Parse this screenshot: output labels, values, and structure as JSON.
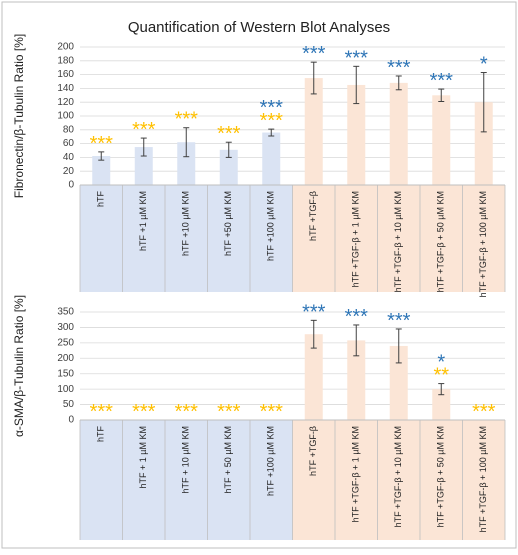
{
  "chart_data": [
    {
      "type": "bar",
      "title": "Quantification of Western Blot Analyses",
      "ylabel": "Fibronectin/β-Tubulin Ratio [%]",
      "categories": [
        "hTF",
        "hTF +1 µM KM",
        "hTF +10 µM KM",
        "hTF +50 µM KM",
        "hTF +100 µM KM",
        "hTF +TGF-β",
        "hTF +TGF-β + 1 µM KM",
        "hTF +TGF-β + 10 µM KM",
        "hTF +TGF-β + 50 µM KM",
        "hTF +TGF-β + 100 µM KM"
      ],
      "values": [
        42,
        55,
        62,
        51,
        76,
        155,
        145,
        148,
        130,
        120
      ],
      "errors": [
        6,
        13,
        21,
        11,
        5,
        23,
        27,
        10,
        9,
        43
      ],
      "colors": [
        "#dae3f3",
        "#dae3f3",
        "#dae3f3",
        "#dae3f3",
        "#dae3f3",
        "#fbe5d6",
        "#fbe5d6",
        "#fbe5d6",
        "#fbe5d6",
        "#fbe5d6"
      ],
      "ylim": [
        0,
        200
      ],
      "yticks": [
        0,
        20,
        40,
        60,
        80,
        100,
        120,
        140,
        160,
        180,
        200
      ],
      "grid": true,
      "significance": [
        {
          "color": "#ffc000",
          "labels": [
            "***",
            "***",
            "***",
            "***",
            "***",
            null,
            null,
            null,
            null,
            null
          ]
        },
        {
          "color": "#2e75b6",
          "labels": [
            null,
            null,
            null,
            null,
            "***",
            "***",
            "***",
            "***",
            "***",
            "*"
          ]
        }
      ]
    },
    {
      "type": "bar",
      "ylabel": "α-SMA/β-Tubulin Ratio [%]",
      "categories": [
        "hTF",
        "hTF + 1 µM KM",
        "hTF + 10 µM KM",
        "hTF + 50 µM KM",
        "hTF +100 µM KM",
        "hTF +TGF-β",
        "hTF +TGF-β + 1 µM KM",
        "hTF +TGF-β + 10 µM KM",
        "hTF +TGF-β + 50 µM KM",
        "hTF +TGF-β + 100 µM KM"
      ],
      "values": [
        0,
        0,
        0,
        0,
        0,
        278,
        258,
        240,
        100,
        0
      ],
      "errors": [
        null,
        null,
        null,
        null,
        null,
        45,
        50,
        55,
        18,
        null
      ],
      "colors": [
        "#dae3f3",
        "#dae3f3",
        "#dae3f3",
        "#dae3f3",
        "#dae3f3",
        "#fbe5d6",
        "#fbe5d6",
        "#fbe5d6",
        "#fbe5d6",
        "#fbe5d6"
      ],
      "ylim": [
        0,
        350
      ],
      "yticks": [
        0,
        50,
        100,
        150,
        200,
        250,
        300,
        350
      ],
      "grid": true,
      "significance": [
        {
          "color": "#ffc000",
          "labels": [
            "***",
            "***",
            "***",
            "***",
            "***",
            null,
            null,
            null,
            "**",
            "***"
          ]
        },
        {
          "color": "#2e75b6",
          "labels": [
            null,
            null,
            null,
            null,
            null,
            "***",
            "***",
            "***",
            "*",
            null
          ]
        }
      ]
    }
  ]
}
